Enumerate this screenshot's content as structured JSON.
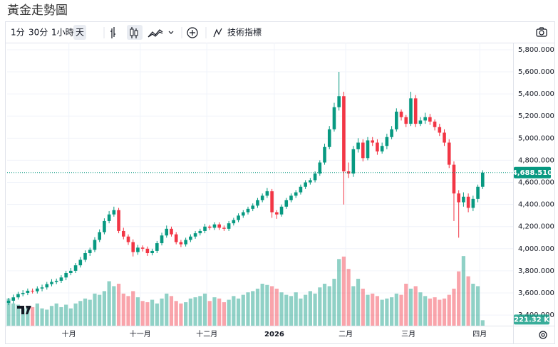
{
  "header": {
    "title": "黃金走勢圖"
  },
  "toolbar": {
    "intervals": [
      "1分",
      "30分",
      "1小時",
      "天"
    ],
    "indicators": "技術指標"
  },
  "chart_data": {
    "type": "candlestick",
    "up_color": "#089981",
    "down_color": "#f23645",
    "grid": true,
    "ylim": [
      3304,
      5864
    ],
    "yticks": [
      {
        "value": 3400,
        "label": "3,400.000"
      },
      {
        "value": 3600,
        "label": "3,600.000"
      },
      {
        "value": 3800,
        "label": "3,800.000"
      },
      {
        "value": 4000,
        "label": "4,000.000"
      },
      {
        "value": 4200,
        "label": "4,200.000"
      },
      {
        "value": 4400,
        "label": "4,400.000"
      },
      {
        "value": 4600,
        "label": "4,600.000"
      },
      {
        "value": 4800,
        "label": "4,800.000"
      },
      {
        "value": 5000,
        "label": "5,000.000"
      },
      {
        "value": 5200,
        "label": "5,200.000"
      },
      {
        "value": 5400,
        "label": "5,400.000"
      },
      {
        "value": 5600,
        "label": "5,600.000"
      },
      {
        "value": 5800,
        "label": "5,800.000"
      }
    ],
    "xlim": [
      -0.3,
      99.3
    ],
    "xticks": [
      {
        "value": 12.6,
        "label": "十月"
      },
      {
        "value": 27.5,
        "label": "十一月"
      },
      {
        "value": 41.4,
        "label": "十二月"
      },
      {
        "value": 55.5,
        "label": "2026"
      },
      {
        "value": 70.4,
        "label": "二月"
      },
      {
        "value": 83.5,
        "label": "三月"
      },
      {
        "value": 98.4,
        "label": "四月"
      }
    ],
    "open": [
      3510,
      3530,
      3560,
      3590,
      3600,
      3620,
      3615,
      3640,
      3650,
      3680,
      3700,
      3710,
      3740,
      3780,
      3800,
      3850,
      3900,
      3960,
      3990,
      4080,
      4150,
      4250,
      4310,
      4350,
      4160,
      4110,
      4060,
      3970,
      4010,
      4000,
      3960,
      3980,
      4050,
      4120,
      4180,
      4130,
      4060,
      4040,
      4080,
      4110,
      4140,
      4160,
      4200,
      4190,
      4220,
      4190,
      4180,
      4230,
      4260,
      4300,
      4330,
      4360,
      4390,
      4440,
      4480,
      4520,
      4330,
      4310,
      4380,
      4440,
      4480,
      4510,
      4560,
      4600,
      4620,
      4680,
      4780,
      4920,
      5080,
      5280,
      5380,
      4700,
      4680,
      4900,
      4960,
      4820,
      4980,
      4960,
      4880,
      4930,
      5010,
      5080,
      5240,
      5190,
      5130,
      5360,
      5130,
      5160,
      5190,
      5150,
      5100,
      5050,
      4960,
      4760,
      4500,
      4420,
      4470,
      4370,
      4450,
      4560
    ],
    "high": [
      3555,
      3585,
      3610,
      3625,
      3640,
      3640,
      3660,
      3675,
      3700,
      3725,
      3730,
      3760,
      3800,
      3825,
      3870,
      3925,
      3985,
      4010,
      4105,
      4175,
      4275,
      4340,
      4380,
      4370,
      4190,
      4130,
      4085,
      4035,
      4030,
      4020,
      4000,
      4070,
      4145,
      4210,
      4200,
      4150,
      4080,
      4100,
      4130,
      4160,
      4180,
      4225,
      4215,
      4240,
      4240,
      4210,
      4250,
      4280,
      4320,
      4350,
      4380,
      4410,
      4460,
      4500,
      4550,
      4540,
      4350,
      4400,
      4460,
      4500,
      4530,
      4580,
      4620,
      4640,
      4700,
      4800,
      4950,
      5110,
      5320,
      5600,
      5420,
      4780,
      4930,
      5000,
      4990,
      5010,
      5010,
      4990,
      4960,
      5040,
      5110,
      5270,
      5260,
      5210,
      5420,
      5390,
      5190,
      5230,
      5220,
      5170,
      5130,
      5080,
      4990,
      4790,
      4530,
      4510,
      4500,
      4480,
      4580,
      4710
    ],
    "low": [
      3490,
      3505,
      3540,
      3570,
      3580,
      3595,
      3595,
      3615,
      3630,
      3660,
      3680,
      3690,
      3715,
      3760,
      3780,
      3830,
      3880,
      3935,
      3970,
      4060,
      4130,
      4230,
      4290,
      4140,
      4085,
      4035,
      3930,
      3945,
      3975,
      3935,
      3940,
      3960,
      4030,
      4100,
      4110,
      4040,
      4015,
      4020,
      4060,
      4090,
      4120,
      4140,
      4170,
      4170,
      4170,
      4160,
      4160,
      4210,
      4240,
      4280,
      4310,
      4340,
      4370,
      4420,
      4460,
      4280,
      4270,
      4290,
      4360,
      4420,
      4460,
      4490,
      4540,
      4580,
      4600,
      4660,
      4760,
      4900,
      5060,
      5250,
      4400,
      4640,
      4650,
      4870,
      4790,
      4800,
      4930,
      4850,
      4860,
      4900,
      4990,
      5060,
      5160,
      5100,
      5110,
      5100,
      5110,
      5130,
      5120,
      5070,
      5020,
      4930,
      4730,
      4250,
      4100,
      4380,
      4330,
      4340,
      4420,
      4540
    ],
    "close": [
      3530,
      3560,
      3590,
      3600,
      3620,
      3615,
      3640,
      3650,
      3680,
      3700,
      3710,
      3740,
      3780,
      3800,
      3850,
      3900,
      3960,
      3990,
      4080,
      4150,
      4250,
      4310,
      4350,
      4160,
      4110,
      4060,
      3970,
      4010,
      4000,
      3960,
      3980,
      4050,
      4120,
      4180,
      4130,
      4060,
      4040,
      4080,
      4110,
      4140,
      4160,
      4200,
      4190,
      4220,
      4190,
      4180,
      4230,
      4260,
      4300,
      4330,
      4360,
      4390,
      4440,
      4480,
      4520,
      4330,
      4310,
      4380,
      4440,
      4480,
      4510,
      4560,
      4600,
      4620,
      4680,
      4780,
      4920,
      5080,
      5280,
      5380,
      4700,
      4680,
      4900,
      4960,
      4820,
      4980,
      4960,
      4880,
      4930,
      5010,
      5080,
      5240,
      5190,
      5130,
      5360,
      5130,
      5160,
      5190,
      5150,
      5100,
      5050,
      4960,
      4760,
      4500,
      4420,
      4470,
      4370,
      4450,
      4560,
      4688.51
    ],
    "close_value_label": "4,688.510",
    "volume": [
      1100,
      900,
      850,
      700,
      800,
      750,
      900,
      700,
      650,
      800,
      900,
      750,
      850,
      700,
      900,
      1000,
      1100,
      1050,
      1300,
      1250,
      1400,
      1800,
      1600,
      1700,
      1300,
      1200,
      1400,
      1150,
      1000,
      950,
      1050,
      900,
      1100,
      1300,
      1200,
      1000,
      900,
      950,
      1100,
      1150,
      1200,
      1300,
      1000,
      1150,
      1100,
      950,
      1050,
      1200,
      1100,
      1250,
      1350,
      1400,
      1500,
      1700,
      1650,
      1600,
      1500,
      1350,
      1250,
      1200,
      1350,
      1100,
      1250,
      1400,
      1300,
      1550,
      1700,
      1600,
      1900,
      2700,
      2800,
      2300,
      1600,
      1900,
      1500,
      1250,
      1300,
      1200,
      1050,
      1100,
      1150,
      1300,
      1250,
      1700,
      1500,
      1600,
      1350,
      1200,
      1100,
      1150,
      1050,
      1100,
      1250,
      1500,
      2200,
      2820,
      2000,
      1700,
      1600,
      221.32
    ],
    "volume_ylim": [
      0,
      3400
    ],
    "volume_value_label": "221.32 K"
  }
}
